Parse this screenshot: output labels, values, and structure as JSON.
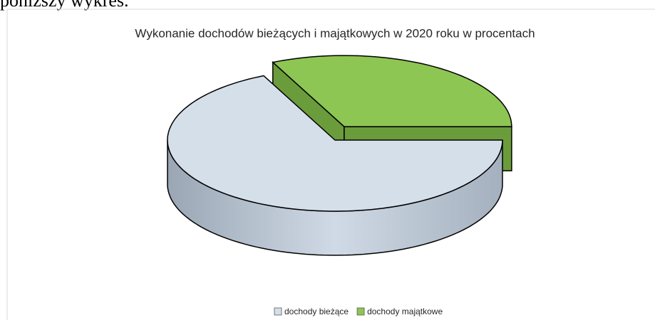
{
  "page_text": "poniższy wykres.",
  "chart_data": {
    "type": "pie3d",
    "title": "Wykonanie dochodów bieżących i majątkowych w 2020 roku w procentach",
    "categories": [
      "dochody bieżące",
      "dochody majątkowe"
    ],
    "values": [
      68,
      32
    ],
    "colors": [
      "#d4dfea",
      "#8dc653"
    ],
    "exploded": [
      false,
      true
    ],
    "legend": "bottom"
  }
}
